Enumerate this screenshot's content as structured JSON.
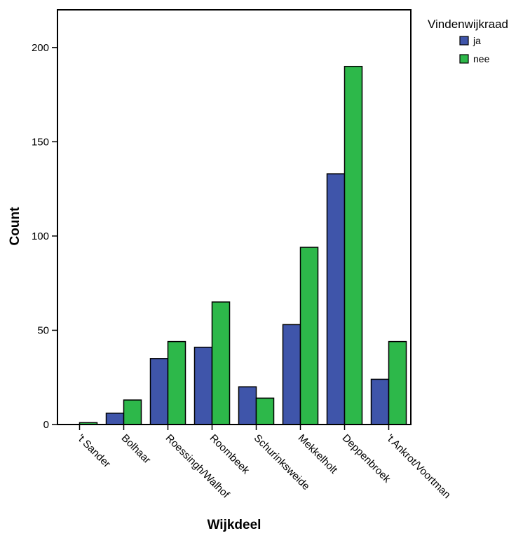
{
  "chart_data": {
    "type": "bar",
    "title": "",
    "xlabel": "Wijkdeel",
    "ylabel": "Count",
    "ylim": [
      0,
      220
    ],
    "yticks": [
      0,
      50,
      100,
      150,
      200
    ],
    "grid": false,
    "legend": {
      "title": "Vindenwijkraad",
      "placement": "top-right"
    },
    "categories": [
      "'t Sander",
      "Bolhaar",
      "Roessingh/Walhof",
      "Roombeek",
      "Schurinksweide",
      "Mekkelholt",
      "Deppenbroek",
      "'t Ankrot/Voortman"
    ],
    "series": [
      {
        "name": "ja",
        "color": "#3F55AA",
        "values": [
          0,
          6,
          35,
          41,
          20,
          53,
          133,
          24
        ]
      },
      {
        "name": "nee",
        "color": "#2DB84A",
        "values": [
          1,
          13,
          44,
          65,
          14,
          94,
          190,
          44
        ]
      }
    ]
  }
}
